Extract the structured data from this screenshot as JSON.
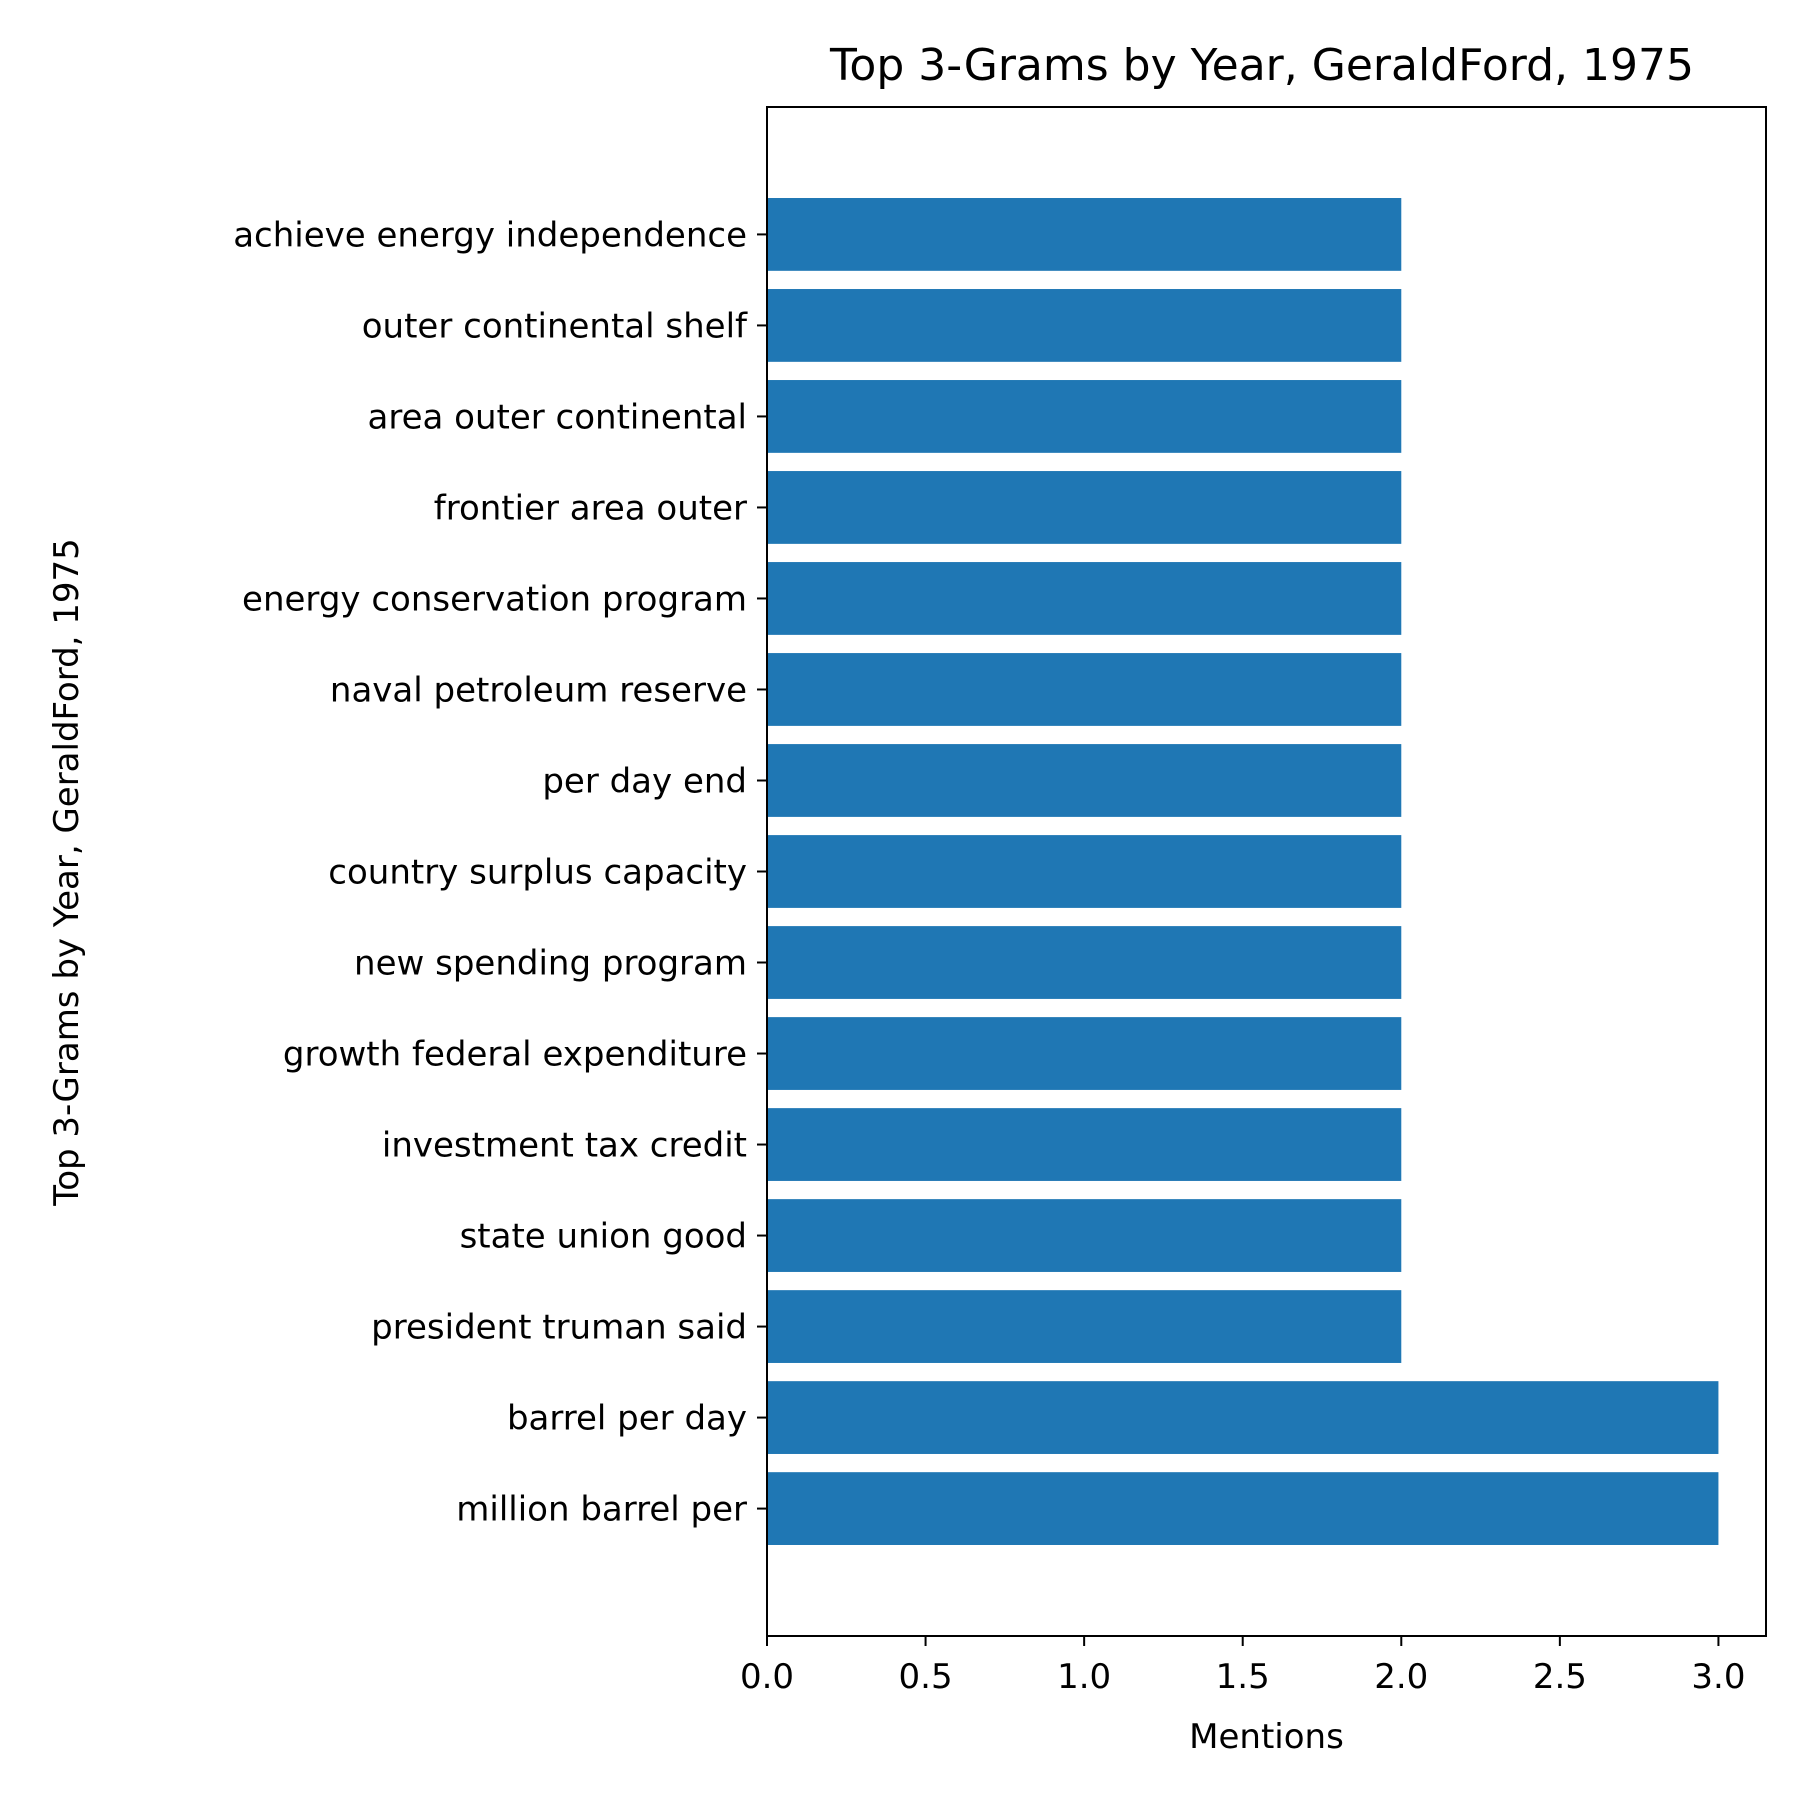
{
  "chart_data": {
    "type": "bar",
    "orientation": "horizontal",
    "title": "Top 3-Grams by Year, GeraldFord, 1975",
    "xlabel": "Mentions",
    "ylabel": "Top 3-Grams by Year, GeraldFord, 1975",
    "categories": [
      "million barrel per",
      "barrel per day",
      "president truman said",
      "state union good",
      "investment tax credit",
      "growth federal expenditure",
      "new spending program",
      "country surplus capacity",
      "per day end",
      "naval petroleum reserve",
      "energy conservation program",
      "frontier area outer",
      "area outer continental",
      "outer continental shelf",
      "achieve energy independence"
    ],
    "values": [
      3,
      3,
      2,
      2,
      2,
      2,
      2,
      2,
      2,
      2,
      2,
      2,
      2,
      2,
      2
    ],
    "xlim": [
      0,
      3.15
    ],
    "xticks": [
      "0.0",
      "0.5",
      "1.0",
      "1.5",
      "2.0",
      "2.5",
      "3.0"
    ],
    "grid": false,
    "bar_color": "#1f77b4"
  }
}
